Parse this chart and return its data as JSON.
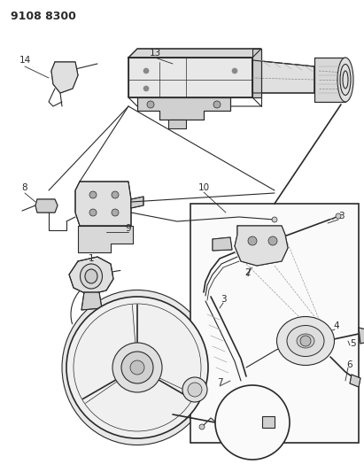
{
  "title_code": "9108 8300",
  "bg_color": "#ffffff",
  "line_color": "#2a2a2a",
  "fig_width": 4.11,
  "fig_height": 5.33,
  "dpi": 100
}
